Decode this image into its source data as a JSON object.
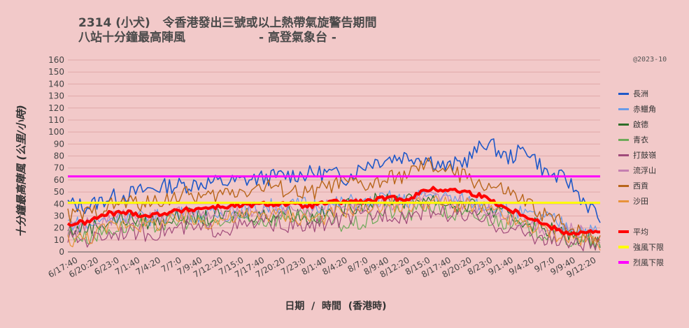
{
  "title_line1": "2314 (小犬)   令香港發出三號或以上熱帶氣旋警告期間",
  "title_line2": "八站十分鐘最高陣風",
  "subtitle": "- 高登氣象台 -",
  "copyright": "@2023-10",
  "chart_data": {
    "type": "line",
    "ylabel": "十分鐘最高陣風  (公里/小時)",
    "xlabel": "日期  /  時間  (香港時)",
    "ylim": [
      0,
      160
    ],
    "yticks": [
      0,
      10,
      20,
      30,
      40,
      50,
      60,
      70,
      80,
      90,
      100,
      110,
      120,
      130,
      140,
      150,
      160
    ],
    "x_tick_labels": [
      "6/17:40",
      "6/20:20",
      "6/23:0",
      "7/1:40",
      "7/4:20",
      "7/7:0",
      "7/9:40",
      "7/12:20",
      "7/15:0",
      "7/17:40",
      "7/20:20",
      "7/23:0",
      "8/1:40",
      "8/4:20",
      "8/7:0",
      "8/9:40",
      "8/12:20",
      "8/15:0",
      "8/17:40",
      "8/20:20",
      "8/23:0",
      "9/1:40",
      "9/4:20",
      "9/7:0",
      "9/9:40",
      "9/12:20"
    ],
    "grid": true,
    "legend_position": "right",
    "x_hours": [
      0,
      6,
      12,
      18,
      24,
      30,
      36,
      42,
      48,
      54,
      60,
      66,
      72,
      78,
      84,
      90,
      96,
      102,
      108,
      114,
      120,
      126,
      132,
      138,
      144,
      150,
      156,
      160
    ],
    "series": [
      {
        "name": "長洲",
        "color": "#1f58c8",
        "width": 1.6,
        "values": [
          40,
          38,
          45,
          48,
          52,
          55,
          56,
          58,
          58,
          60,
          62,
          64,
          65,
          66,
          62,
          74,
          78,
          80,
          78,
          70,
          77,
          92,
          78,
          86,
          65,
          60,
          40,
          28
        ]
      },
      {
        "name": "赤鱲角",
        "color": "#6a9be8",
        "width": 1.2,
        "values": [
          25,
          22,
          28,
          30,
          28,
          30,
          32,
          30,
          32,
          35,
          38,
          38,
          40,
          38,
          42,
          40,
          45,
          42,
          48,
          45,
          42,
          40,
          35,
          30,
          28,
          22,
          18,
          15
        ]
      },
      {
        "name": "啟德",
        "color": "#2e6e2a",
        "width": 1.2,
        "values": [
          18,
          20,
          25,
          28,
          25,
          28,
          30,
          28,
          30,
          32,
          30,
          35,
          28,
          32,
          38,
          40,
          45,
          42,
          45,
          40,
          38,
          35,
          30,
          25,
          20,
          15,
          12,
          10
        ]
      },
      {
        "name": "青衣",
        "color": "#6eaa5a",
        "width": 1.2,
        "values": [
          15,
          12,
          18,
          22,
          20,
          24,
          26,
          24,
          25,
          28,
          26,
          30,
          28,
          25,
          22,
          25,
          35,
          30,
          40,
          32,
          30,
          28,
          25,
          20,
          15,
          10,
          8,
          6
        ]
      },
      {
        "name": "打鼓嶺",
        "color": "#a04a7a",
        "width": 1.2,
        "values": [
          12,
          10,
          15,
          18,
          15,
          18,
          20,
          18,
          20,
          22,
          25,
          22,
          20,
          25,
          28,
          30,
          32,
          30,
          35,
          32,
          30,
          25,
          20,
          15,
          10,
          8,
          6,
          5
        ]
      },
      {
        "name": "流浮山",
        "color": "#c57fb0",
        "width": 1.2,
        "values": [
          20,
          22,
          28,
          30,
          28,
          30,
          32,
          30,
          32,
          35,
          34,
          36,
          35,
          38,
          40,
          38,
          42,
          40,
          45,
          42,
          40,
          36,
          30,
          25,
          20,
          18,
          15,
          12
        ]
      },
      {
        "name": "西貢",
        "color": "#b8651a",
        "width": 1.4,
        "values": [
          30,
          32,
          38,
          42,
          40,
          45,
          48,
          45,
          50,
          52,
          55,
          52,
          48,
          55,
          58,
          55,
          60,
          65,
          72,
          68,
          62,
          55,
          50,
          40,
          30,
          22,
          15,
          12
        ]
      },
      {
        "name": "沙田",
        "color": "#e8923a",
        "width": 1.2,
        "values": [
          10,
          12,
          20,
          25,
          22,
          25,
          28,
          25,
          28,
          30,
          32,
          30,
          28,
          30,
          35,
          38,
          40,
          38,
          42,
          40,
          38,
          35,
          28,
          22,
          18,
          12,
          10,
          8
        ]
      },
      {
        "name": "平均",
        "color": "#ff0000",
        "width": 4,
        "values": [
          23,
          25,
          32,
          33,
          30,
          33,
          35,
          37,
          38,
          39,
          40,
          40,
          38,
          41,
          42,
          42,
          45,
          44,
          52,
          52,
          50,
          45,
          36,
          30,
          22,
          16,
          16,
          17
        ]
      },
      {
        "name": "強風下限",
        "color": "#ffff00",
        "width": 3,
        "constant": 41
      },
      {
        "name": "烈風下限",
        "color": "#ff00ff",
        "width": 3,
        "constant": 63
      }
    ]
  }
}
